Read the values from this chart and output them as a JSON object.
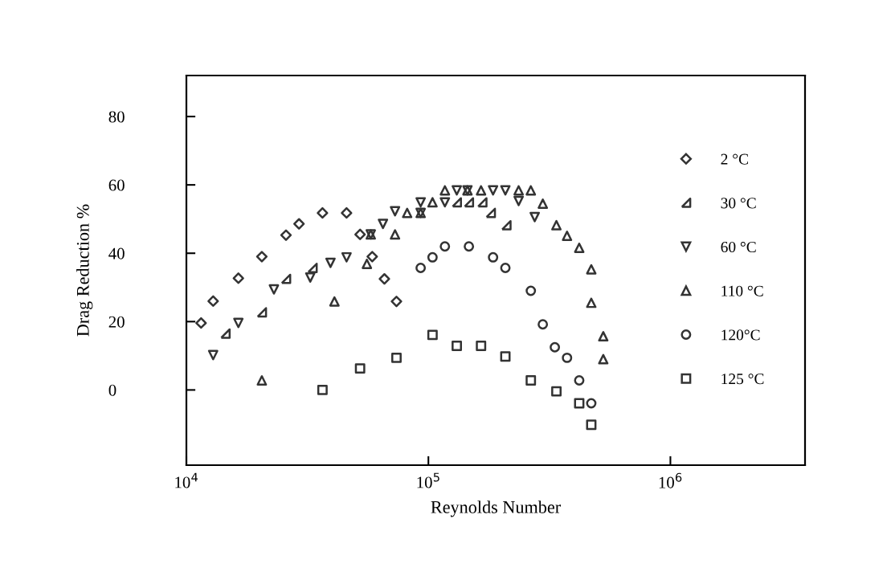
{
  "chart_data": {
    "type": "scatter",
    "xlabel": "Reynolds Number",
    "ylabel": "Drag Reduction %",
    "log": "x",
    "xlim": [
      10000,
      3600000
    ],
    "xticks": [
      {
        "value": 10000,
        "label": "10$^{4}$"
      },
      {
        "value": 100000,
        "label": "10$^{5}$"
      },
      {
        "value": 1000000,
        "label": "10$^{6}$"
      }
    ],
    "ylim": [
      -22,
      92
    ],
    "yticks": [
      0,
      20,
      40,
      60,
      80
    ],
    "grid": false,
    "legend": "right",
    "series": [
      {
        "name": "2 °C",
        "marker": "diamond",
        "color": "#333333",
        "x": [
          11500,
          12900,
          16400,
          20500,
          25800,
          29200,
          36500,
          45900,
          52200,
          58600,
          65800,
          73800
        ],
        "values": [
          19.6,
          26.0,
          32.7,
          39.0,
          45.3,
          48.6,
          51.8,
          51.8,
          45.5,
          39.0,
          32.5,
          25.9
        ]
      },
      {
        "name": "30 °C",
        "color": "#333333",
        "x": [
          14500,
          20500,
          25800,
          33200,
          131000,
          147000,
          167000,
          181000,
          210000
        ],
        "values": [
          16.5,
          22.7,
          32.5,
          35.7,
          54.9,
          54.9,
          54.9,
          51.8,
          48.2
        ]
      },
      {
        "name": "60 °C",
        "marker": "triangle-down",
        "color": "#333333",
        "x": [
          12900,
          16400,
          23000,
          32500,
          39400,
          45900,
          57800,
          64900,
          72800,
          92900,
          92900,
          117000,
          131000,
          145000,
          185000,
          208000,
          236000,
          275000
        ],
        "values": [
          10.2,
          19.6,
          29.4,
          32.9,
          37.2,
          38.8,
          45.5,
          48.6,
          52.3,
          51.8,
          54.9,
          54.9,
          58.4,
          58.4,
          58.4,
          58.4,
          55.3,
          50.6
        ]
      },
      {
        "name": "110 °C",
        "marker": "triangle",
        "color": "#333333",
        "x": [
          20500,
          40900,
          55700,
          57800,
          72800,
          81700,
          92900,
          104000,
          117000,
          145000,
          165000,
          236000,
          265000,
          297000,
          338000,
          374000,
          420000,
          471000,
          471000,
          528000,
          528000
        ],
        "values": [
          2.8,
          25.9,
          36.9,
          45.5,
          45.5,
          51.8,
          51.8,
          54.9,
          58.4,
          58.4,
          58.4,
          58.4,
          58.4,
          54.5,
          48.2,
          45.1,
          41.6,
          35.3,
          25.5,
          15.7,
          9.0
        ]
      },
      {
        "name": "120°C",
        "marker": "circle",
        "color": "#333333",
        "x": [
          92900,
          104000,
          117000,
          147000,
          185000,
          208000,
          265000,
          297000,
          333000,
          374000,
          420000,
          471000
        ],
        "values": [
          35.7,
          38.8,
          42.0,
          42.0,
          38.8,
          35.7,
          29.0,
          19.2,
          12.5,
          9.4,
          2.8,
          -3.9
        ]
      },
      {
        "name": "125 °C",
        "marker": "square",
        "color": "#333333",
        "x": [
          36500,
          52200,
          73800,
          104000,
          131000,
          165000,
          208000,
          265000,
          338000,
          420000,
          471000
        ],
        "values": [
          0.0,
          6.3,
          9.4,
          16.1,
          12.9,
          12.9,
          9.8,
          2.8,
          -0.4,
          -3.9,
          -10.2
        ]
      }
    ]
  }
}
